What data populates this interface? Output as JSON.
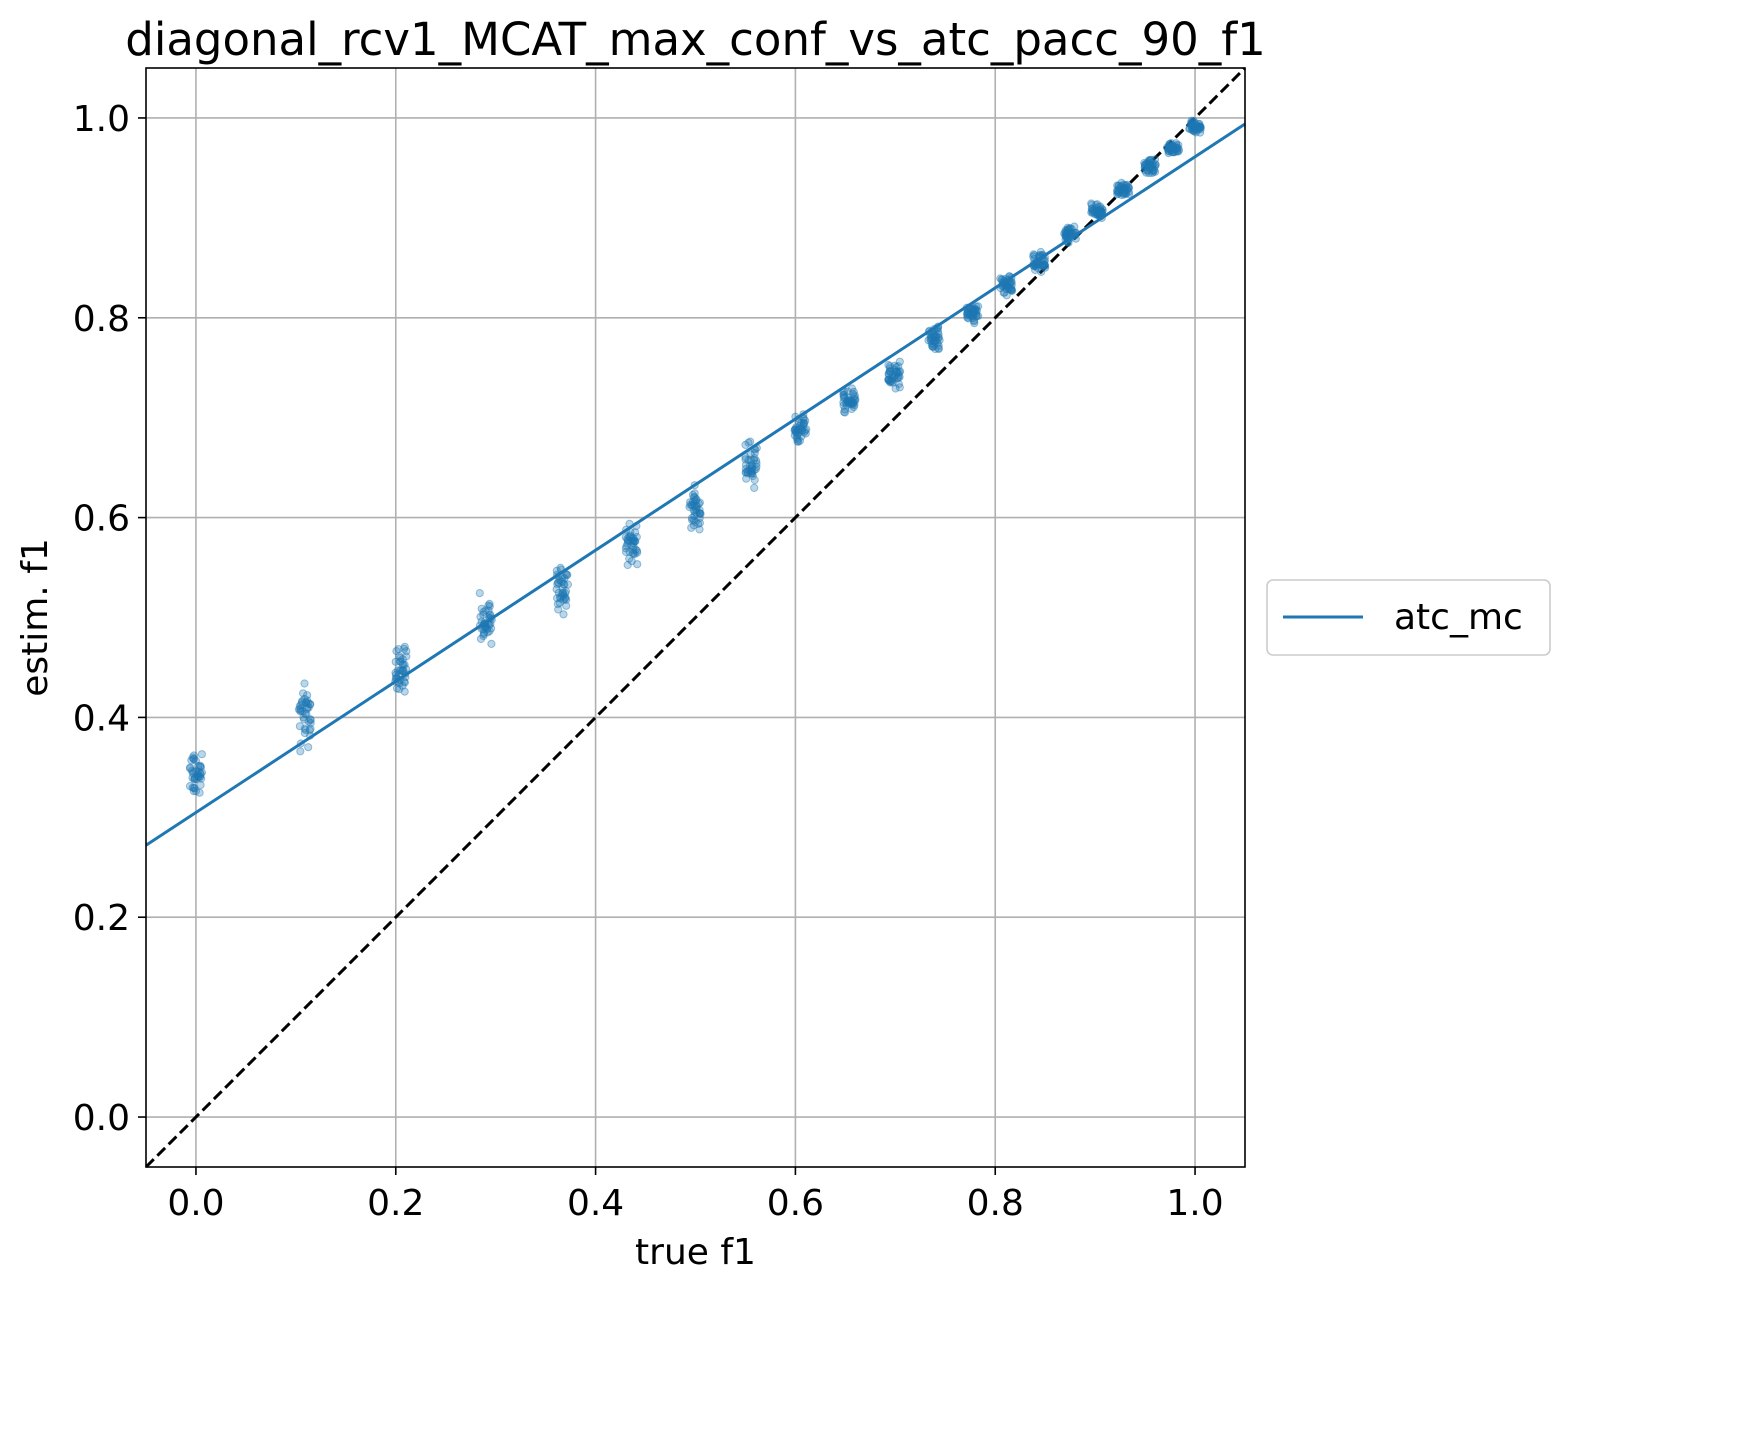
{
  "chart_data": {
    "type": "scatter",
    "title": "diagonal_rcv1_MCAT_max_conf_vs_atc_pacc_90_f1",
    "xlabel": "true f1",
    "ylabel": "estim. f1",
    "xlim": [
      -0.05,
      1.05
    ],
    "ylim": [
      -0.05,
      1.05
    ],
    "xticks": [
      "0.0",
      "0.2",
      "0.4",
      "0.6",
      "0.8",
      "1.0"
    ],
    "yticks": [
      "0.0",
      "0.2",
      "0.4",
      "0.6",
      "0.8",
      "1.0"
    ],
    "grid": true,
    "legend_position": "outside-right",
    "series": [
      {
        "name": "atc_mc",
        "kind": "scatter",
        "color": "#1f77b4",
        "clusters": [
          {
            "x": 0.0,
            "y_min": 0.305,
            "y_max": 0.38,
            "y_mean": 0.345
          },
          {
            "x": 0.109,
            "y_min": 0.355,
            "y_max": 0.45,
            "y_mean": 0.395
          },
          {
            "x": 0.205,
            "y_min": 0.415,
            "y_max": 0.482,
            "y_mean": 0.447
          },
          {
            "x": 0.29,
            "y_min": 0.462,
            "y_max": 0.527,
            "y_mean": 0.494
          },
          {
            "x": 0.367,
            "y_min": 0.5,
            "y_max": 0.56,
            "y_mean": 0.532
          },
          {
            "x": 0.436,
            "y_min": 0.547,
            "y_max": 0.6,
            "y_mean": 0.574
          },
          {
            "x": 0.5,
            "y_min": 0.58,
            "y_max": 0.636,
            "y_mean": 0.61
          },
          {
            "x": 0.556,
            "y_min": 0.625,
            "y_max": 0.686,
            "y_mean": 0.648
          },
          {
            "x": 0.605,
            "y_min": 0.665,
            "y_max": 0.708,
            "y_mean": 0.684
          },
          {
            "x": 0.654,
            "y_min": 0.7,
            "y_max": 0.735,
            "y_mean": 0.716
          },
          {
            "x": 0.699,
            "y_min": 0.723,
            "y_max": 0.762,
            "y_mean": 0.745
          },
          {
            "x": 0.739,
            "y_min": 0.762,
            "y_max": 0.797,
            "y_mean": 0.778
          },
          {
            "x": 0.777,
            "y_min": 0.79,
            "y_max": 0.82,
            "y_mean": 0.805
          },
          {
            "x": 0.811,
            "y_min": 0.82,
            "y_max": 0.846,
            "y_mean": 0.832
          },
          {
            "x": 0.844,
            "y_min": 0.84,
            "y_max": 0.87,
            "y_mean": 0.857
          },
          {
            "x": 0.875,
            "y_min": 0.868,
            "y_max": 0.895,
            "y_mean": 0.88
          },
          {
            "x": 0.902,
            "y_min": 0.896,
            "y_max": 0.916,
            "y_mean": 0.906
          },
          {
            "x": 0.928,
            "y_min": 0.918,
            "y_max": 0.938,
            "y_mean": 0.928
          },
          {
            "x": 0.955,
            "y_min": 0.94,
            "y_max": 0.962,
            "y_mean": 0.951
          },
          {
            "x": 0.978,
            "y_min": 0.962,
            "y_max": 0.978,
            "y_mean": 0.97
          },
          {
            "x": 1.0,
            "y_min": 0.982,
            "y_max": 1.0,
            "y_mean": 0.99
          }
        ]
      },
      {
        "name": "atc_mc",
        "kind": "line",
        "color": "#1f77b4",
        "x": [
          -0.05,
          1.05
        ],
        "y": [
          0.272,
          0.994
        ]
      },
      {
        "kind": "diagonal",
        "style": "dashed",
        "color": "#000000",
        "x": [
          -0.05,
          1.05
        ],
        "y": [
          -0.05,
          1.05
        ]
      }
    ]
  },
  "legend": {
    "entries": [
      "atc_mc"
    ]
  }
}
